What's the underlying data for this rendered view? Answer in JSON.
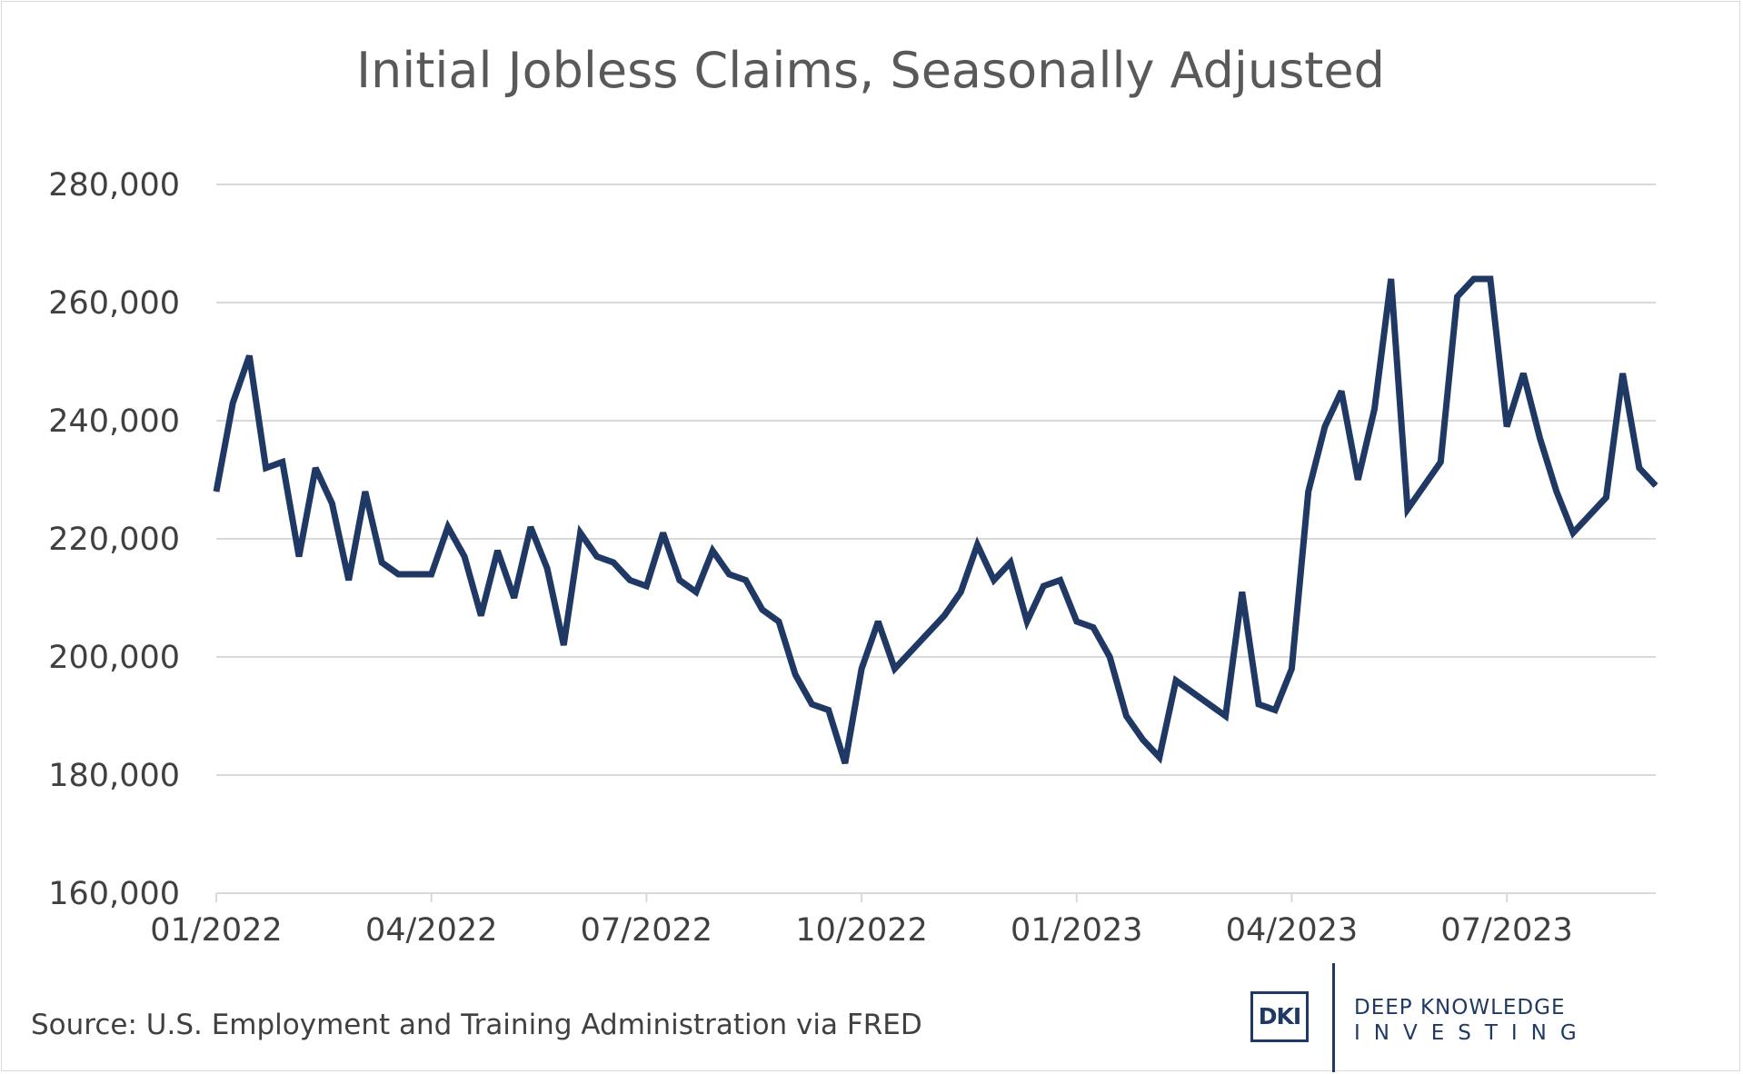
{
  "chart_data": {
    "type": "line",
    "title": "Initial Jobless Claims, Seasonally Adjusted",
    "xlabel": "",
    "ylabel": "",
    "ylim": [
      160000,
      280000
    ],
    "yticks": [
      160000,
      180000,
      200000,
      220000,
      240000,
      260000,
      280000
    ],
    "ytick_labels": [
      "160,000",
      "180,000",
      "200,000",
      "220,000",
      "240,000",
      "260,000",
      "280,000"
    ],
    "xlim": [
      0,
      87
    ],
    "xticks": [
      0,
      13,
      26,
      39,
      52,
      65,
      78
    ],
    "xtick_labels": [
      "01/2022",
      "04/2022",
      "07/2022",
      "10/2022",
      "01/2023",
      "04/2023",
      "07/2023"
    ],
    "grid": true,
    "legend": "none",
    "color": "#1f3864",
    "series": [
      {
        "name": "Initial Jobless Claims",
        "x": [
          0,
          1,
          2,
          3,
          4,
          5,
          6,
          7,
          8,
          9,
          10,
          11,
          12,
          13,
          14,
          15,
          16,
          17,
          18,
          19,
          20,
          21,
          22,
          23,
          24,
          25,
          26,
          27,
          28,
          29,
          30,
          31,
          32,
          33,
          34,
          35,
          36,
          37,
          38,
          39,
          40,
          41,
          42,
          43,
          44,
          45,
          46,
          47,
          48,
          49,
          50,
          51,
          52,
          53,
          54,
          55,
          56,
          57,
          58,
          59,
          60,
          61,
          62,
          63,
          64,
          65,
          66,
          67,
          68,
          69,
          70,
          71,
          72,
          73,
          74,
          75,
          76,
          77,
          78,
          79,
          80,
          81,
          82,
          83,
          84,
          85,
          86,
          87
        ],
        "values": [
          228000,
          243000,
          251000,
          232000,
          233000,
          217000,
          232000,
          226000,
          213000,
          228000,
          216000,
          214000,
          214000,
          214000,
          222000,
          217000,
          207000,
          218000,
          210000,
          222000,
          215000,
          202000,
          221000,
          217000,
          216000,
          213000,
          212000,
          221000,
          213000,
          211000,
          218000,
          214000,
          213000,
          208000,
          206000,
          197000,
          192000,
          191000,
          182000,
          198000,
          206000,
          198000,
          201000,
          204000,
          207000,
          211000,
          219000,
          213000,
          216000,
          206000,
          212000,
          213000,
          206000,
          205000,
          200000,
          190000,
          186000,
          183000,
          196000,
          194000,
          192000,
          190000,
          211000,
          192000,
          191000,
          198000,
          228000,
          239000,
          245000,
          230000,
          242000,
          264000,
          225000,
          229000,
          233000,
          261000,
          264000,
          264000,
          239000,
          248000,
          237000,
          228000,
          221000,
          224000,
          227000,
          248000,
          232000,
          229000
        ]
      }
    ]
  },
  "source": "Source: U.S. Employment and Training Administration via FRED",
  "logo": {
    "mark": "DKI",
    "line1": "DEEP KNOWLEDGE",
    "line2": "INVESTING"
  }
}
